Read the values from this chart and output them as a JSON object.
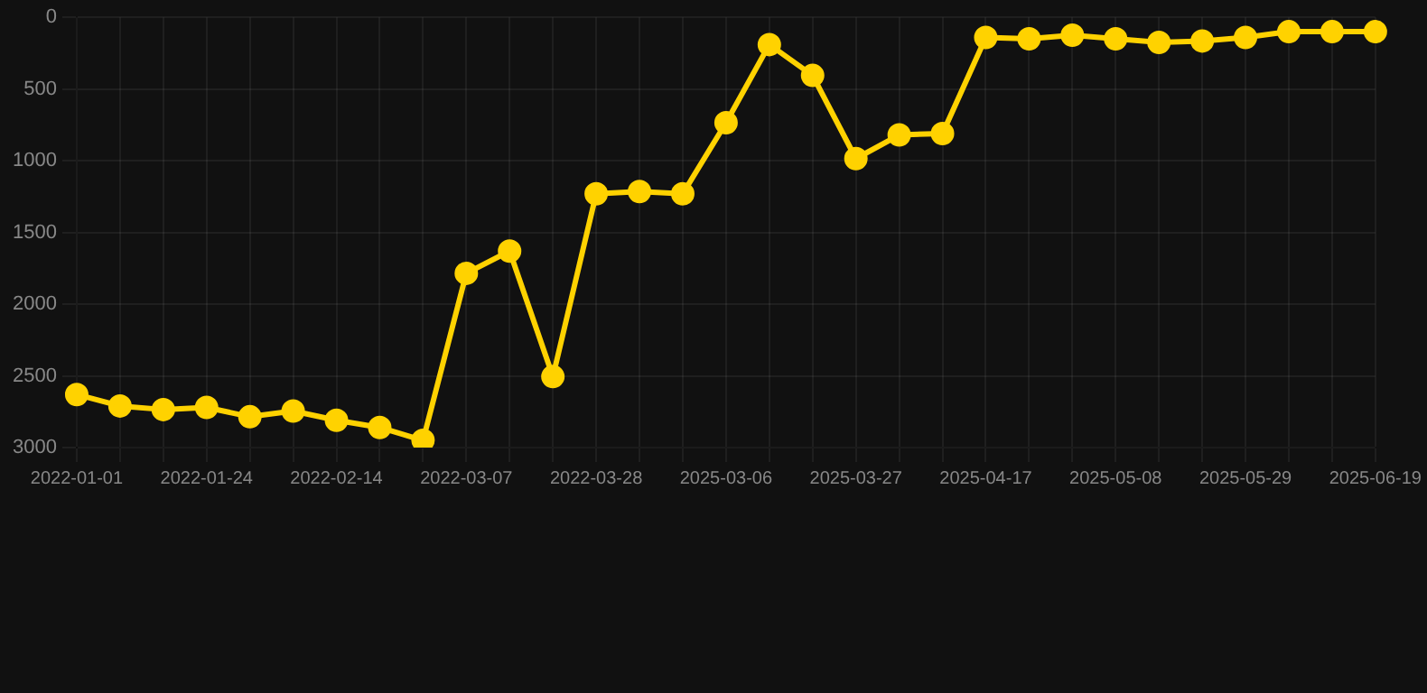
{
  "chart_data": {
    "type": "line",
    "categories": [
      "2022-01-01",
      null,
      null,
      "2022-01-24",
      null,
      null,
      "2022-02-14",
      null,
      null,
      "2022-03-07",
      null,
      null,
      "2022-03-28",
      null,
      null,
      "2025-03-06",
      null,
      null,
      "2025-03-27",
      null,
      null,
      "2025-04-17",
      null,
      null,
      "2025-05-08",
      null,
      null,
      "2025-05-29",
      null,
      null,
      "2025-06-19"
    ],
    "series": [
      {
        "color": "#ffd200",
        "values": [
          2630,
          2710,
          2735,
          2720,
          2785,
          2745,
          2810,
          2860,
          2950,
          1785,
          1630,
          2505,
          1230,
          1215,
          1230,
          735,
          190,
          405,
          985,
          820,
          810,
          140,
          150,
          125,
          150,
          175,
          165,
          140,
          100,
          100,
          100
        ]
      }
    ],
    "ylim": [
      3000,
      0
    ],
    "yticks": [
      0,
      500,
      1000,
      1500,
      2000,
      2500,
      3000
    ],
    "grid": true,
    "marker": "circle",
    "line_style": "solid"
  }
}
